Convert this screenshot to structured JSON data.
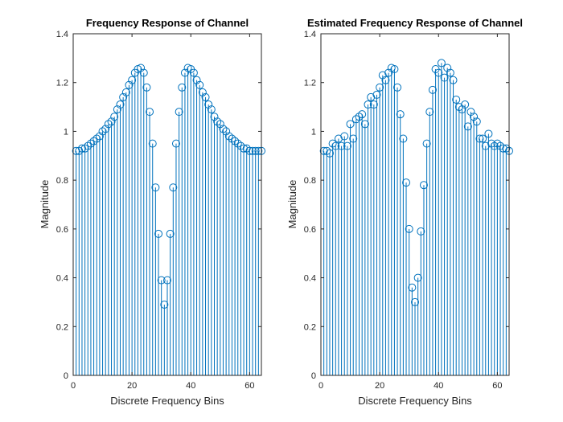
{
  "chart_data": [
    {
      "type": "stem",
      "title": "Frequency Response of Channel",
      "xlabel": "Discrete Frequency Bins",
      "ylabel": "Magnitude",
      "xlim": [
        0,
        64
      ],
      "ylim": [
        0,
        1.4
      ],
      "xticks": [
        "0",
        "20",
        "40",
        "60"
      ],
      "yticks": [
        "0",
        "0.2",
        "0.4",
        "0.6",
        "0.8",
        "1",
        "1.2",
        "1.4"
      ],
      "xtick_values": [
        0,
        20,
        40,
        60
      ],
      "ytick_values": [
        0,
        0.2,
        0.4,
        0.6,
        0.8,
        1.0,
        1.2,
        1.4
      ],
      "color": "#0072BD",
      "x": [
        1,
        2,
        3,
        4,
        5,
        6,
        7,
        8,
        9,
        10,
        11,
        12,
        13,
        14,
        15,
        16,
        17,
        18,
        19,
        20,
        21,
        22,
        23,
        24,
        25,
        26,
        27,
        28,
        29,
        30,
        31,
        32,
        33,
        34,
        35,
        36,
        37,
        38,
        39,
        40,
        41,
        42,
        43,
        44,
        45,
        46,
        47,
        48,
        49,
        50,
        51,
        52,
        53,
        54,
        55,
        56,
        57,
        58,
        59,
        60,
        61,
        62,
        63,
        64
      ],
      "values": [
        0.92,
        0.92,
        0.93,
        0.93,
        0.94,
        0.95,
        0.96,
        0.97,
        0.98,
        1.0,
        1.01,
        1.03,
        1.04,
        1.06,
        1.09,
        1.11,
        1.14,
        1.16,
        1.19,
        1.21,
        1.24,
        1.255,
        1.26,
        1.24,
        1.18,
        1.08,
        0.95,
        0.77,
        0.58,
        0.39,
        0.29,
        0.39,
        0.58,
        0.77,
        0.95,
        1.08,
        1.18,
        1.24,
        1.26,
        1.255,
        1.24,
        1.21,
        1.19,
        1.16,
        1.14,
        1.11,
        1.09,
        1.06,
        1.04,
        1.03,
        1.01,
        1.0,
        0.98,
        0.97,
        0.96,
        0.95,
        0.94,
        0.93,
        0.93,
        0.92,
        0.92,
        0.92,
        0.92,
        0.92
      ]
    },
    {
      "type": "stem",
      "title": "Estimated Frequency Response of Channel",
      "xlabel": "Discrete Frequency Bins",
      "ylabel": "Magnitude",
      "xlim": [
        0,
        64
      ],
      "ylim": [
        0,
        1.4
      ],
      "xticks": [
        "0",
        "20",
        "40",
        "60"
      ],
      "yticks": [
        "0",
        "0.2",
        "0.4",
        "0.6",
        "0.8",
        "1",
        "1.2",
        "1.4"
      ],
      "xtick_values": [
        0,
        20,
        40,
        60
      ],
      "ytick_values": [
        0,
        0.2,
        0.4,
        0.6,
        0.8,
        1.0,
        1.2,
        1.4
      ],
      "color": "#0072BD",
      "x": [
        1,
        2,
        3,
        4,
        5,
        6,
        7,
        8,
        9,
        10,
        11,
        12,
        13,
        14,
        15,
        16,
        17,
        18,
        19,
        20,
        21,
        22,
        23,
        24,
        25,
        26,
        27,
        28,
        29,
        30,
        31,
        32,
        33,
        34,
        35,
        36,
        37,
        38,
        39,
        40,
        41,
        42,
        43,
        44,
        45,
        46,
        47,
        48,
        49,
        50,
        51,
        52,
        53,
        54,
        55,
        56,
        57,
        58,
        59,
        60,
        61,
        62,
        63,
        64
      ],
      "values": [
        0.92,
        0.92,
        0.91,
        0.95,
        0.94,
        0.97,
        0.94,
        0.98,
        0.94,
        1.03,
        0.97,
        1.05,
        1.06,
        1.07,
        1.03,
        1.11,
        1.14,
        1.11,
        1.15,
        1.18,
        1.23,
        1.21,
        1.24,
        1.26,
        1.255,
        1.18,
        1.07,
        0.97,
        0.79,
        0.6,
        0.36,
        0.3,
        0.4,
        0.59,
        0.78,
        0.95,
        1.08,
        1.17,
        1.255,
        1.24,
        1.28,
        1.22,
        1.26,
        1.24,
        1.21,
        1.13,
        1.1,
        1.09,
        1.11,
        1.02,
        1.08,
        1.06,
        1.04,
        0.97,
        0.97,
        0.94,
        0.99,
        0.95,
        0.94,
        0.95,
        0.94,
        0.93,
        0.93,
        0.92
      ]
    }
  ]
}
